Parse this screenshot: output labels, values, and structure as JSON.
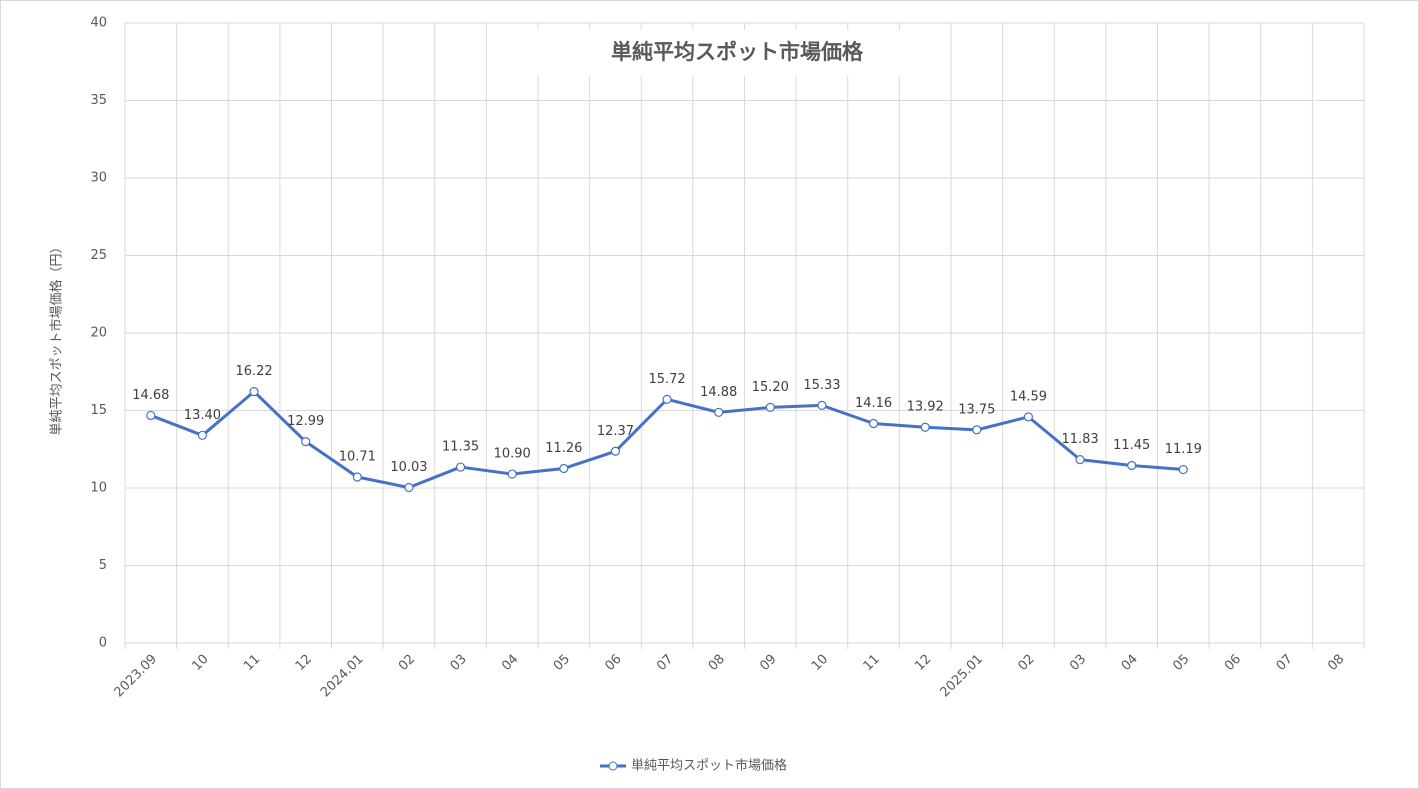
{
  "chart_data": {
    "type": "line",
    "title": "単純平均スポット市場価格",
    "y_label": "単純平均スポット市場価格（円）",
    "categories": [
      "2023.09",
      "10",
      "11",
      "12",
      "2024.01",
      "02",
      "03",
      "04",
      "05",
      "06",
      "07",
      "08",
      "09",
      "10",
      "11",
      "12",
      "2025.01",
      "02",
      "03",
      "04",
      "05",
      "06",
      "07",
      "08"
    ],
    "series": [
      {
        "name": "単純平均スポット市場価格",
        "color": "#4472c4",
        "values": [
          14.68,
          13.4,
          16.22,
          12.99,
          10.71,
          10.03,
          11.35,
          10.9,
          11.26,
          12.37,
          15.72,
          14.88,
          15.2,
          15.33,
          14.16,
          13.92,
          13.75,
          14.59,
          11.83,
          11.45,
          11.19,
          null,
          null,
          null
        ],
        "value_labels": [
          "14.68",
          "13.40",
          "16.22",
          "12.99",
          "10.71",
          "10.03",
          "11.35",
          "10.90",
          "11.26",
          "12.37",
          "15.72",
          "14.88",
          "15.20",
          "15.33",
          "14.16",
          "13.92",
          "13.75",
          "14.59",
          "11.83",
          "11.45",
          "11.19",
          null,
          null,
          null
        ]
      }
    ],
    "ylim": [
      0,
      40
    ],
    "yticks": [
      0,
      5,
      10,
      15,
      20,
      25,
      30,
      35,
      40
    ],
    "grid": true,
    "legend": "bottom"
  }
}
